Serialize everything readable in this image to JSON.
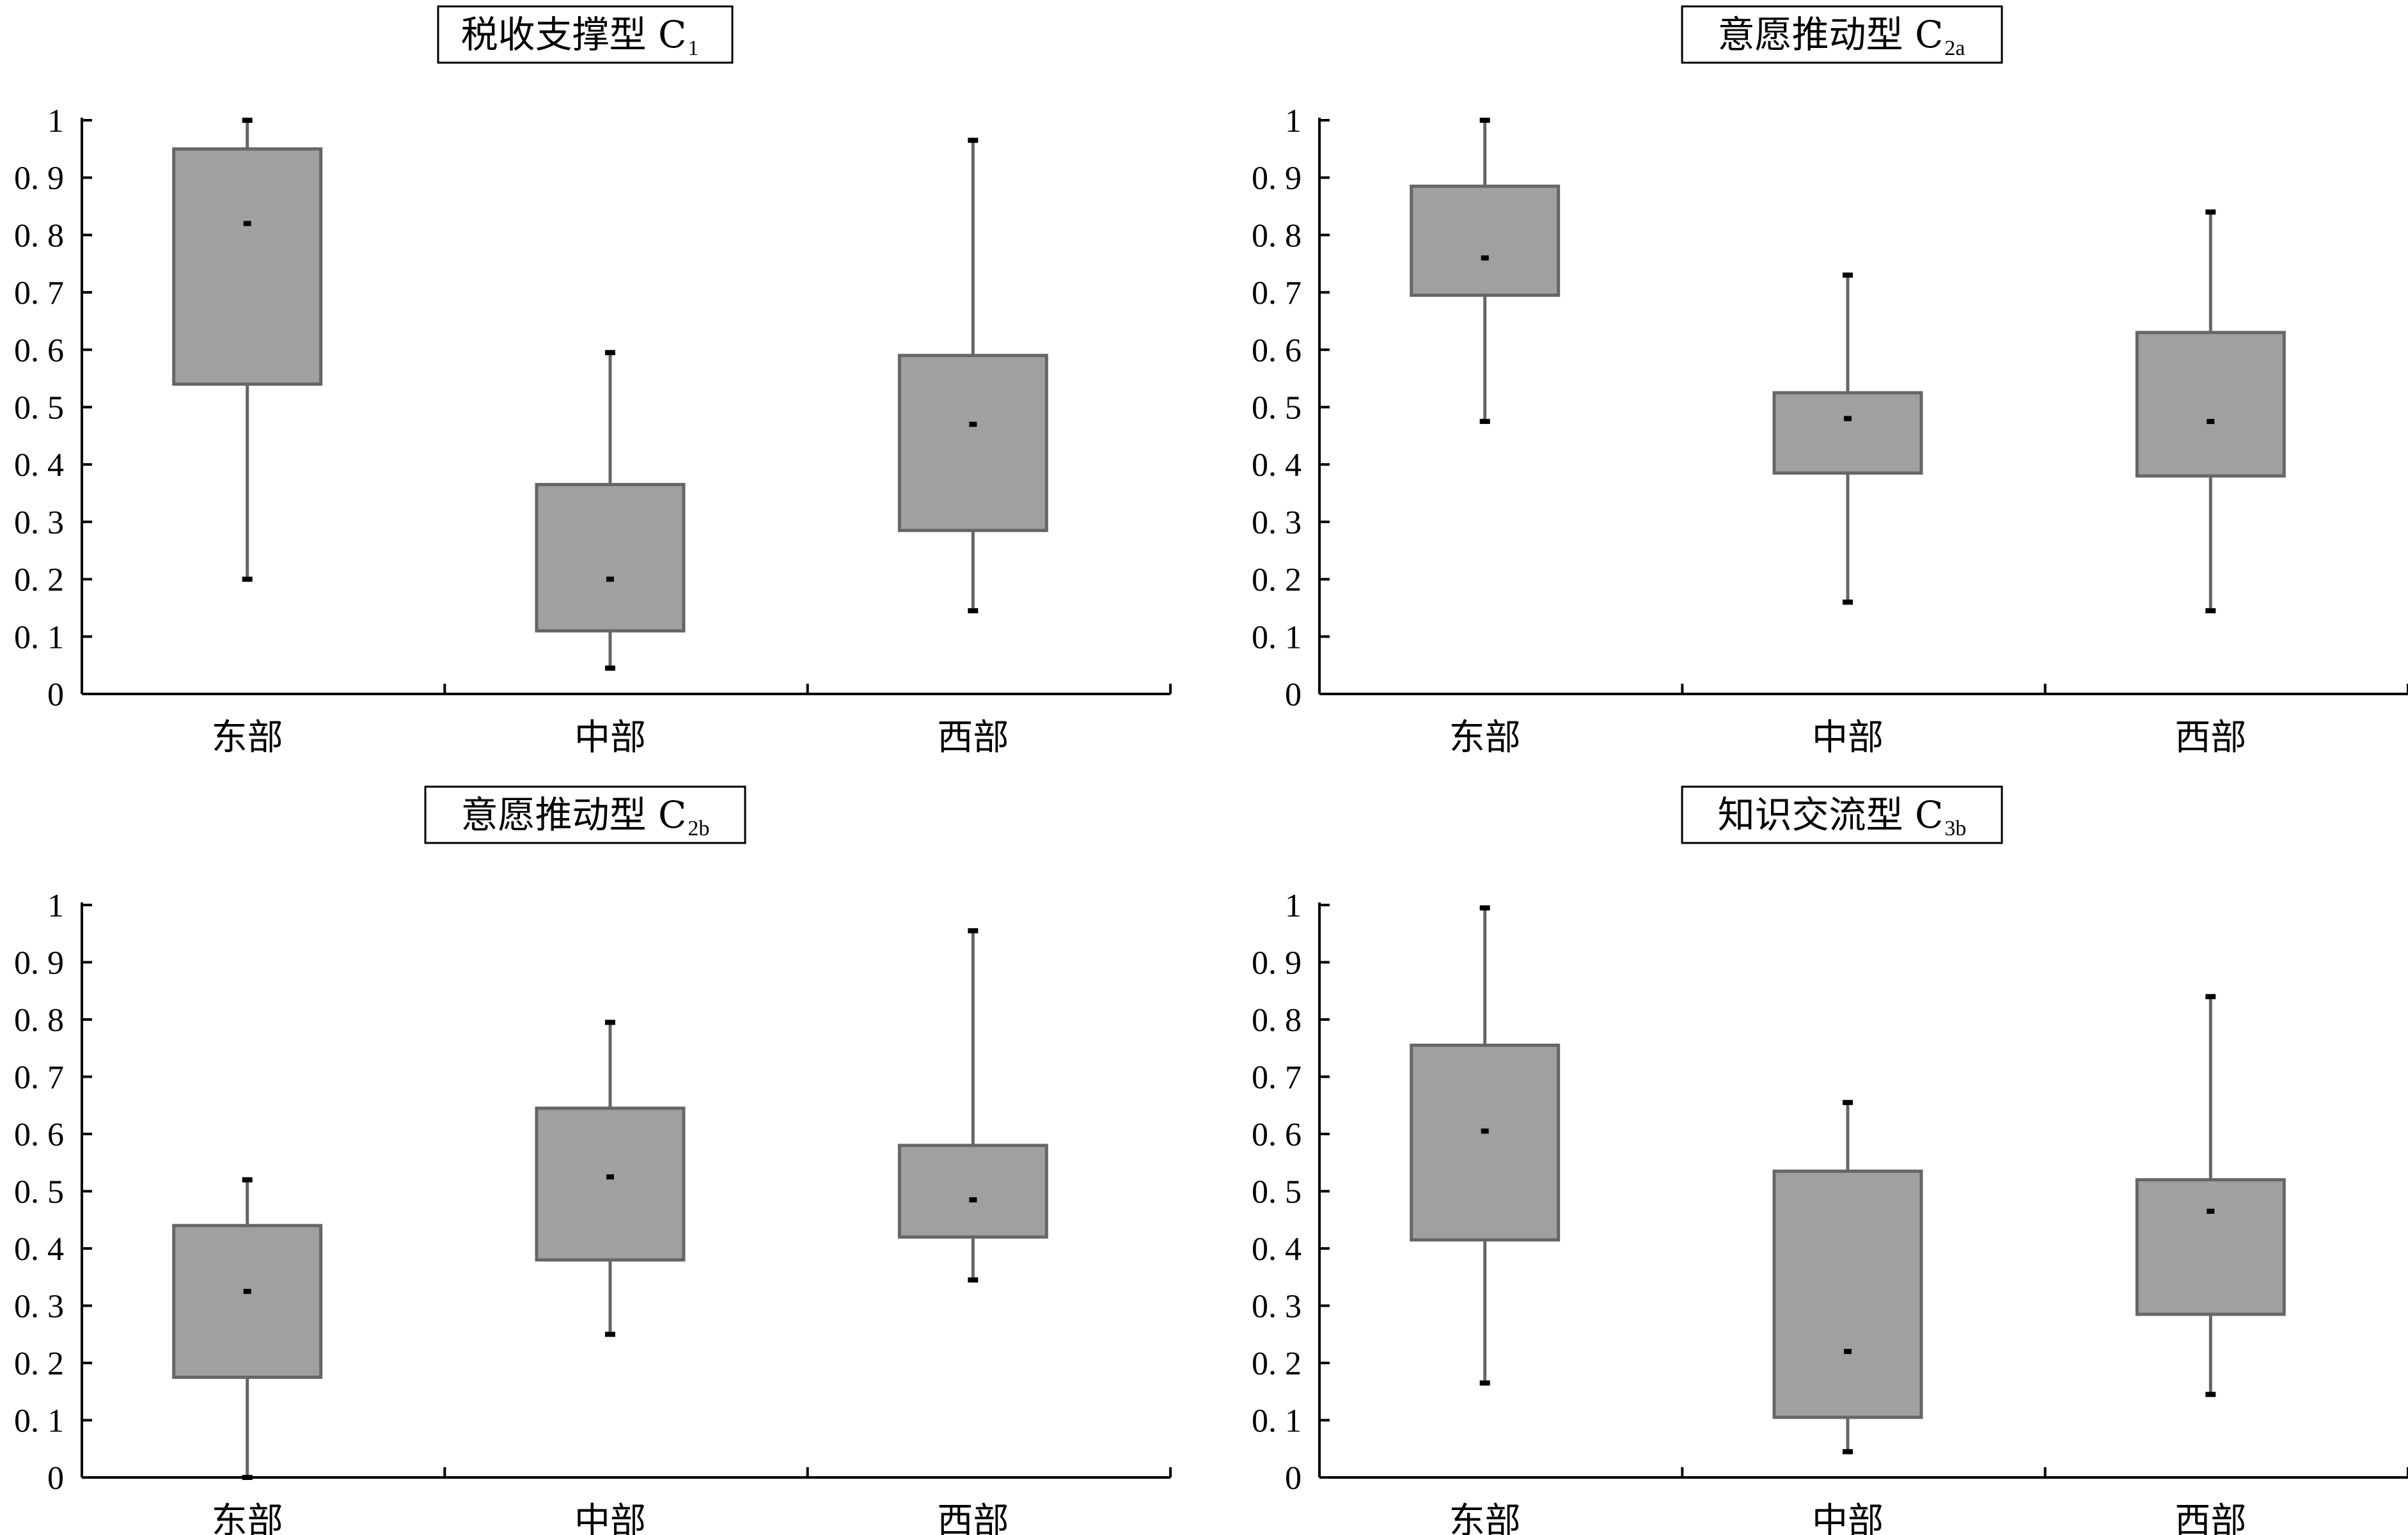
{
  "chart_data": [
    {
      "type": "boxplot",
      "title": "税收支撑型 C",
      "title_sub": "1",
      "categories": [
        "东部",
        "中部",
        "西部"
      ],
      "yticks": [
        "0",
        "0. 1",
        "0. 2",
        "0. 3",
        "0. 4",
        "0. 5",
        "0. 6",
        "0. 7",
        "0. 8",
        "0. 9",
        "1"
      ],
      "ylim": [
        0,
        1
      ],
      "boxes": [
        {
          "category": "东部",
          "min": 0.2,
          "q1": 0.54,
          "median": 0.82,
          "q3": 0.95,
          "max": 1.0
        },
        {
          "category": "中部",
          "min": 0.045,
          "q1": 0.11,
          "median": 0.2,
          "q3": 0.365,
          "max": 0.595
        },
        {
          "category": "西部",
          "min": 0.145,
          "q1": 0.285,
          "median": 0.47,
          "q3": 0.59,
          "max": 0.965
        }
      ],
      "box_color": "#a0a0a0"
    },
    {
      "type": "boxplot",
      "title": "意愿推动型 C",
      "title_sub": "2a",
      "categories": [
        "东部",
        "中部",
        "西部"
      ],
      "yticks": [
        "0",
        "0. 1",
        "0. 2",
        "0. 3",
        "0. 4",
        "0. 5",
        "0. 6",
        "0. 7",
        "0. 8",
        "0. 9",
        "1"
      ],
      "ylim": [
        0,
        1
      ],
      "boxes": [
        {
          "category": "东部",
          "min": 0.475,
          "q1": 0.695,
          "median": 0.76,
          "q3": 0.885,
          "max": 1.0
        },
        {
          "category": "中部",
          "min": 0.16,
          "q1": 0.385,
          "median": 0.48,
          "q3": 0.525,
          "max": 0.73
        },
        {
          "category": "西部",
          "min": 0.145,
          "q1": 0.38,
          "median": 0.475,
          "q3": 0.63,
          "max": 0.84
        }
      ],
      "box_color": "#a0a0a0"
    },
    {
      "type": "boxplot",
      "title": "意愿推动型 C",
      "title_sub": "2b",
      "categories": [
        "东部",
        "中部",
        "西部"
      ],
      "yticks": [
        "0",
        "0. 1",
        "0. 2",
        "0. 3",
        "0. 4",
        "0. 5",
        "0. 6",
        "0. 7",
        "0. 8",
        "0. 9",
        "1"
      ],
      "ylim": [
        0,
        1
      ],
      "boxes": [
        {
          "category": "东部",
          "min": 0.0,
          "q1": 0.175,
          "median": 0.325,
          "q3": 0.44,
          "max": 0.52
        },
        {
          "category": "中部",
          "min": 0.25,
          "q1": 0.38,
          "median": 0.525,
          "q3": 0.645,
          "max": 0.795
        },
        {
          "category": "西部",
          "min": 0.345,
          "q1": 0.42,
          "median": 0.485,
          "q3": 0.58,
          "max": 0.955
        }
      ],
      "box_color": "#a0a0a0"
    },
    {
      "type": "boxplot",
      "title": "知识交流型 C",
      "title_sub": "3b",
      "categories": [
        "东部",
        "中部",
        "西部"
      ],
      "yticks": [
        "0",
        "0. 1",
        "0. 2",
        "0. 3",
        "0. 4",
        "0. 5",
        "0. 6",
        "0. 7",
        "0. 8",
        "0. 9",
        "1"
      ],
      "ylim": [
        0,
        1
      ],
      "boxes": [
        {
          "category": "东部",
          "min": 0.165,
          "q1": 0.415,
          "median": 0.605,
          "q3": 0.755,
          "max": 0.995
        },
        {
          "category": "中部",
          "min": 0.045,
          "q1": 0.105,
          "median": 0.22,
          "q3": 0.535,
          "max": 0.655
        },
        {
          "category": "西部",
          "min": 0.145,
          "q1": 0.285,
          "median": 0.465,
          "q3": 0.52,
          "max": 0.84
        }
      ],
      "box_color": "#a0a0a0"
    }
  ]
}
